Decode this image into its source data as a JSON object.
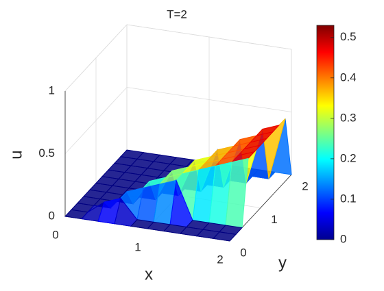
{
  "chart_data": {
    "type": "surface",
    "title": "T=2",
    "x_label": "x",
    "y_label": "y",
    "z_label": "u",
    "x": [
      0,
      0.2,
      0.4,
      0.6,
      0.8,
      1,
      1.2,
      1.4,
      1.6,
      1.8,
      2
    ],
    "y": [
      0,
      0.2,
      0.4,
      0.6,
      0.8,
      1,
      1.2,
      1.4,
      1.6,
      1.8,
      2
    ],
    "z": [
      [
        0,
        0,
        0,
        0,
        0,
        0,
        0,
        0,
        0,
        0,
        0
      ],
      [
        0,
        0,
        0.1,
        0.15,
        0,
        0,
        0,
        0,
        0,
        0,
        0
      ],
      [
        0,
        0,
        0,
        0.15,
        0.2,
        0.25,
        0.3,
        0,
        0,
        0,
        0
      ],
      [
        0,
        0,
        0,
        0,
        0.2,
        0.25,
        0.3,
        0.35,
        0.4,
        0.45,
        0.5
      ],
      [
        0,
        0,
        0,
        0,
        0,
        0.25,
        0.3,
        0.35,
        0.4,
        0.45,
        0.5
      ],
      [
        0,
        0,
        0,
        0,
        0,
        0,
        0.3,
        0.35,
        0.4,
        0.45,
        0.5
      ],
      [
        0,
        0,
        0,
        0,
        0,
        0,
        0,
        0.35,
        0.4,
        0.45,
        0.5
      ],
      [
        0,
        0,
        0,
        0,
        0,
        0,
        0,
        0,
        0.4,
        0.45,
        0.5
      ],
      [
        0,
        0,
        0,
        0,
        0,
        0,
        0,
        0,
        0,
        0.45,
        0.5
      ],
      [
        0,
        0,
        0,
        0,
        0,
        0,
        0,
        0,
        0,
        0,
        0.5
      ],
      [
        0,
        0,
        0,
        0,
        0,
        0,
        0,
        0,
        0,
        0,
        0
      ]
    ],
    "xlim": [
      0,
      2
    ],
    "ylim": [
      0,
      2
    ],
    "zlim": [
      0,
      1
    ],
    "xticks": [
      0,
      1,
      2
    ],
    "yticks": [
      0,
      1,
      2
    ],
    "zticks": [
      0,
      0.5,
      1
    ],
    "colormap": "jet",
    "clim": [
      0,
      0.53
    ],
    "cticks": [
      0,
      0.1,
      0.2,
      0.3,
      0.4,
      0.5
    ],
    "grid": true
  }
}
